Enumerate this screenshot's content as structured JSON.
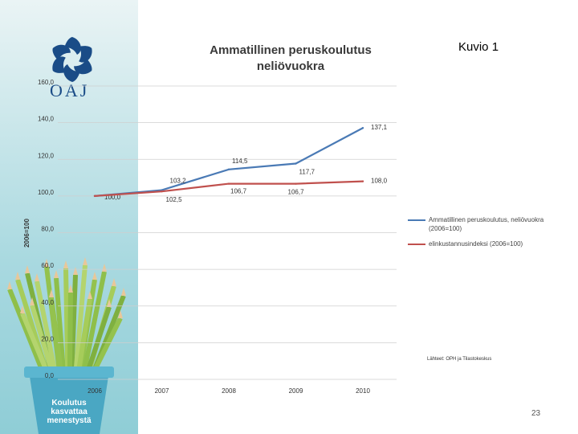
{
  "slide": {
    "label": "Kuvio 1",
    "page_number": "23",
    "source": "Lähteet: OPH ja Tilastokeskus"
  },
  "logo": {
    "text": "OAJ",
    "icon": "oaj-logo-icon",
    "color": "#1a4c87"
  },
  "pot": {
    "lines": [
      "Koulutus",
      "kasvattaa",
      "menestystä"
    ],
    "color": "#4aa7c3"
  },
  "chart_data": {
    "type": "line",
    "title_lines": [
      "Ammatillinen peruskoulutus",
      "neliövuokra"
    ],
    "ylabel": "2006=100",
    "xlabel": "",
    "x": [
      "2006",
      "2007",
      "2008",
      "2009",
      "2010"
    ],
    "ylim": [
      0,
      160
    ],
    "yticks": [
      "0,0",
      "20,0",
      "40,0",
      "60,0",
      "80,0",
      "100,0",
      "120,0",
      "140,0",
      "160,0"
    ],
    "grid": true,
    "legend_position": "right",
    "series": [
      {
        "name": "Ammatillinen peruskoulutus, neliövuokra (2006=100)",
        "name_lines": [
          "Ammatillinen peruskoulutus, neliövuokra",
          "(2006=100)"
        ],
        "color": "#4a7ab5",
        "values": [
          100.0,
          103.2,
          114.5,
          117.7,
          137.1
        ],
        "labels": [
          "100,0",
          "103,2",
          "114,5",
          "117,7",
          "137,1"
        ]
      },
      {
        "name": "elinkustannusindeksi (2006=100)",
        "name_lines": [
          "elinkustannusindeksi (2006=100)"
        ],
        "color": "#c0504d",
        "values": [
          100.0,
          102.5,
          106.7,
          106.7,
          108.0
        ],
        "labels": [
          "100,0",
          "102,5",
          "106,7",
          "106,7",
          "108,0"
        ]
      }
    ]
  }
}
